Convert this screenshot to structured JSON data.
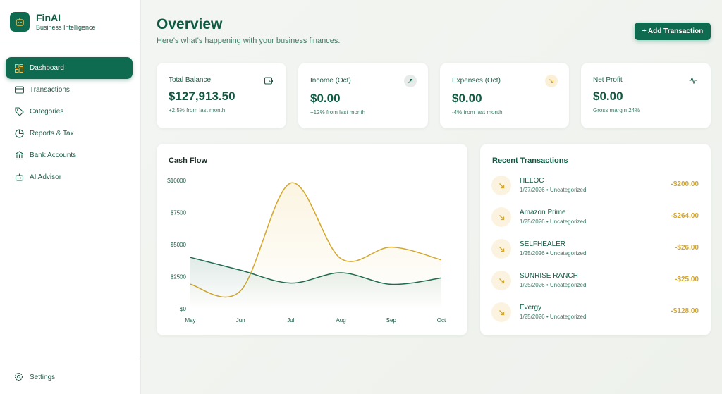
{
  "brand": {
    "name": "FinAI",
    "subtitle": "Business Intelligence"
  },
  "sidebar": {
    "items": [
      {
        "label": "Dashboard",
        "icon": "dashboard-grid-icon",
        "active": true
      },
      {
        "label": "Transactions",
        "icon": "credit-card-icon",
        "active": false
      },
      {
        "label": "Categories",
        "icon": "tag-icon",
        "active": false
      },
      {
        "label": "Reports & Tax",
        "icon": "pie-chart-icon",
        "active": false
      },
      {
        "label": "Bank Accounts",
        "icon": "bank-icon",
        "active": false
      },
      {
        "label": "AI Advisor",
        "icon": "robot-icon",
        "active": false
      }
    ],
    "settings_label": "Settings"
  },
  "header": {
    "title": "Overview",
    "subtitle": "Here's what's happening with your business finances.",
    "add_button": "+ Add Transaction"
  },
  "stats": [
    {
      "label": "Total Balance",
      "value": "$127,913.50",
      "note": "+2.5% from last month",
      "icon": "wallet-icon"
    },
    {
      "label": "Income (Oct)",
      "value": "$0.00",
      "note": "+12% from last month",
      "icon": "arrow-up-right-icon"
    },
    {
      "label": "Expenses (Oct)",
      "value": "$0.00",
      "note": "-4% from last month",
      "icon": "arrow-down-right-icon"
    },
    {
      "label": "Net Profit",
      "value": "$0.00",
      "note": "Gross margin 24%",
      "icon": "activity-icon"
    }
  ],
  "cashflow": {
    "title": "Cash Flow"
  },
  "chart_data": {
    "type": "area",
    "title": "Cash Flow",
    "categories": [
      "May",
      "Jun",
      "Jul",
      "Aug",
      "Sep",
      "Oct"
    ],
    "yticks": [
      "$10000",
      "$7500",
      "$5000",
      "$2500",
      "$0"
    ],
    "ylim": [
      0,
      10000
    ],
    "grid": false,
    "series": [
      {
        "values": [
          1900,
          1400,
          9800,
          3900,
          4800,
          3800
        ],
        "color": "#d4a62a"
      },
      {
        "values": [
          4000,
          3000,
          2000,
          2800,
          1900,
          2400
        ],
        "color": "#1f6b50"
      }
    ]
  },
  "recent": {
    "title": "Recent Transactions",
    "items": [
      {
        "name": "HELOC",
        "meta": "1/27/2026 • Uncategorized",
        "amount": "-$200.00"
      },
      {
        "name": "Amazon Prime",
        "meta": "1/25/2026 • Uncategorized",
        "amount": "-$264.00"
      },
      {
        "name": "SELFHEALER",
        "meta": "1/25/2026 • Uncategorized",
        "amount": "-$26.00"
      },
      {
        "name": "SUNRISE RANCH",
        "meta": "1/25/2026 • Uncategorized",
        "amount": "-$25.00"
      },
      {
        "name": "Evergy",
        "meta": "1/25/2026 • Uncategorized",
        "amount": "-$128.00"
      }
    ]
  },
  "colors": {
    "brand": "#0f6b4f",
    "accent": "#d4a62a"
  }
}
